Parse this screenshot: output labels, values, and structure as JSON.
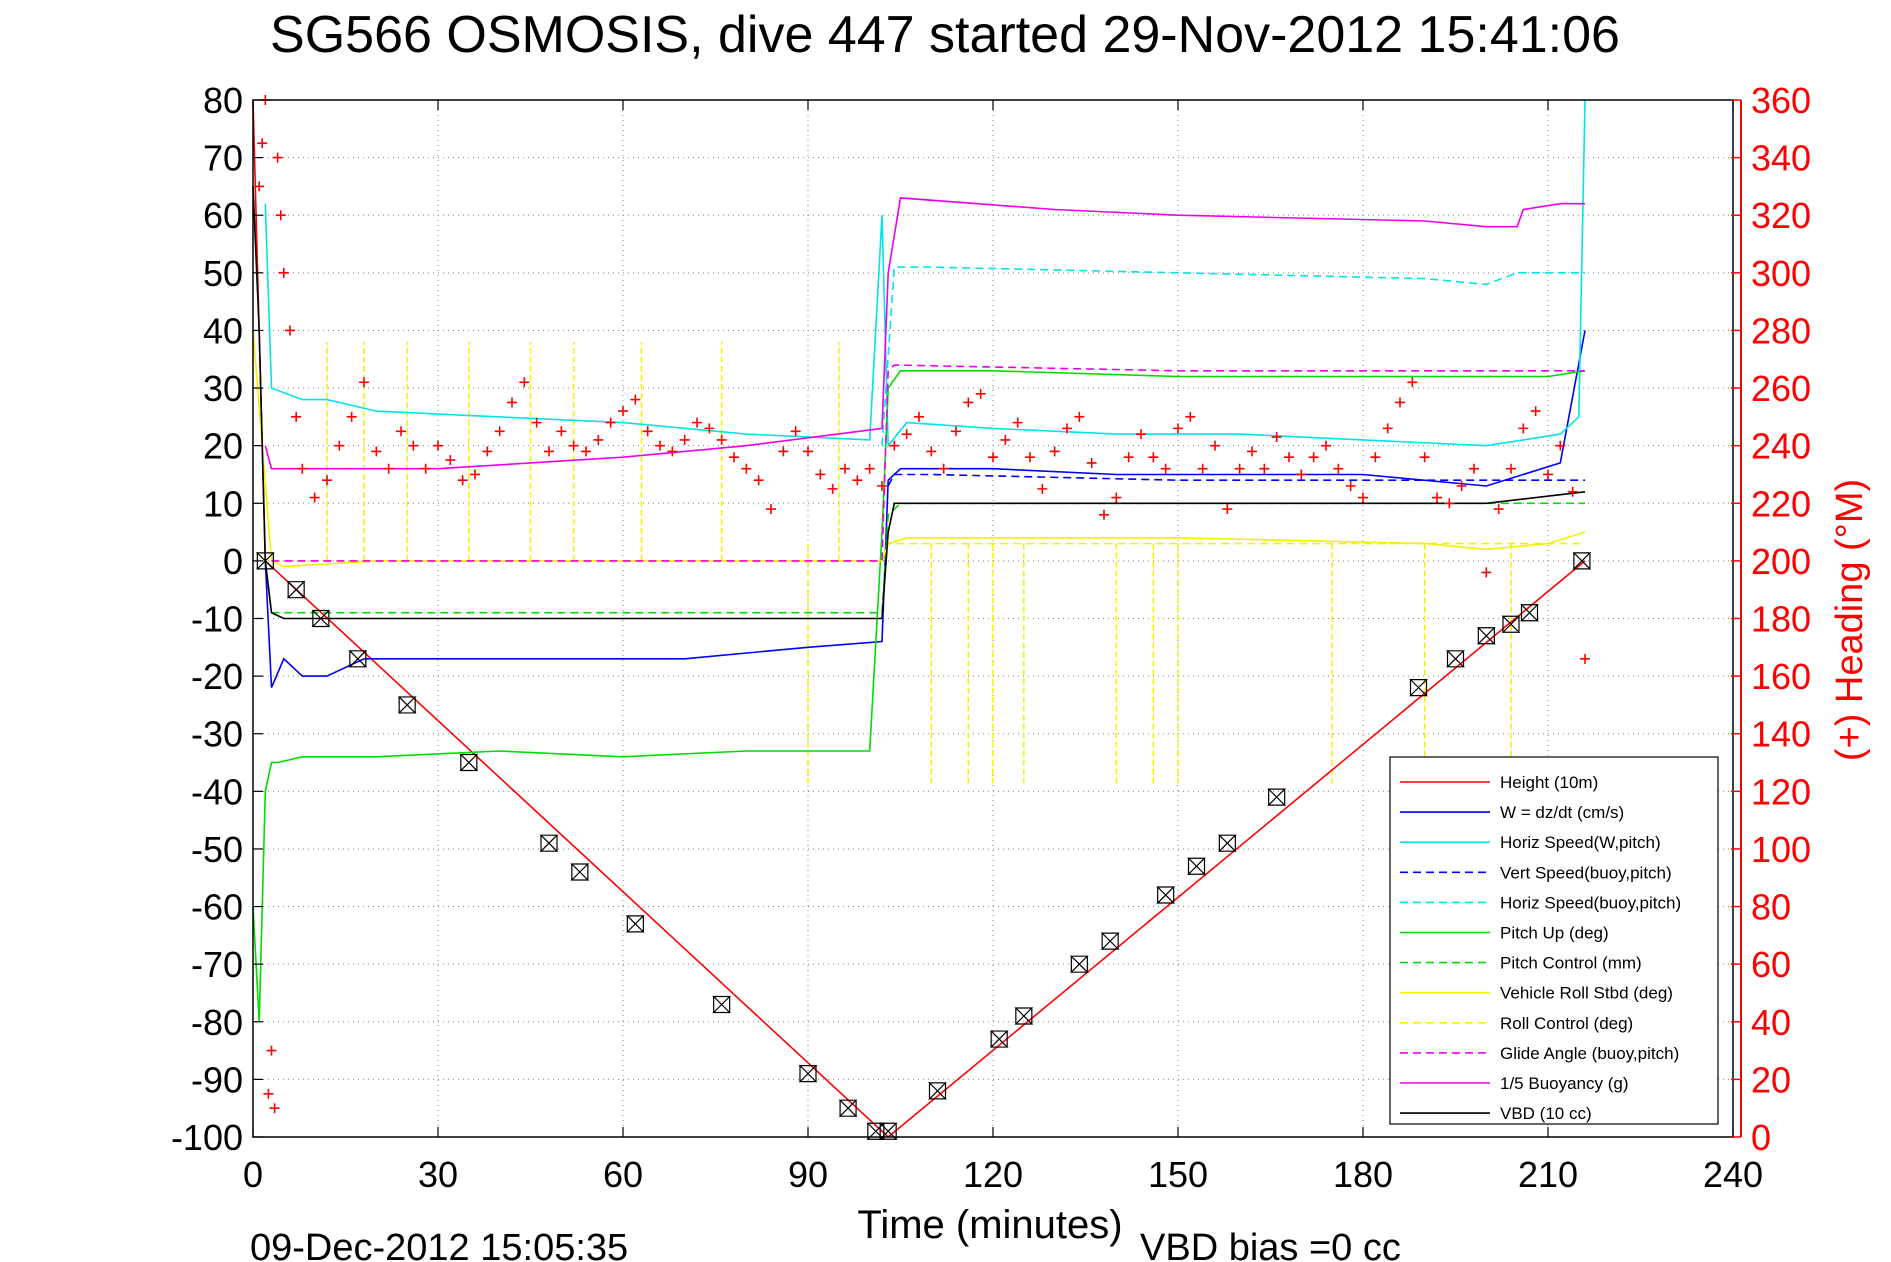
{
  "figure": {
    "title": "SG566 OSMOSIS, dive 447 started 29-Nov-2012 15:41:06",
    "footer_left": "09-Dec-2012 15:05:35",
    "footer_right": "VBD bias =0 cc"
  },
  "chart_data": {
    "type": "line",
    "title": "SG566 OSMOSIS, dive 447 started 29-Nov-2012 15:41:06",
    "xlabel": "Time (minutes)",
    "ylabel": "",
    "y2label": "(+) Heading (°M)",
    "xlim": [
      0,
      240
    ],
    "ylim": [
      -100,
      80
    ],
    "y2lim": [
      0,
      360
    ],
    "x_ticks": [
      0,
      30,
      60,
      90,
      120,
      150,
      180,
      210,
      240
    ],
    "y_ticks": [
      80,
      70,
      60,
      50,
      40,
      30,
      20,
      10,
      0,
      -10,
      -20,
      -30,
      -40,
      -50,
      -60,
      -70,
      -80,
      -90,
      -100
    ],
    "y2_ticks": [
      360,
      340,
      320,
      300,
      280,
      260,
      240,
      220,
      200,
      180,
      160,
      140,
      120,
      100,
      80,
      60,
      40,
      20,
      0
    ],
    "grid": true,
    "legend_position": "bottom-right",
    "colors": {
      "red": "#ff0000",
      "blue": "#0000ff",
      "cyan": "#00e5e5",
      "green": "#00dd00",
      "yellow": "#f2f200",
      "magenta": "#ee00ee",
      "black": "#000000"
    },
    "series": [
      {
        "name": "Height (10m)",
        "color": "#ff0000",
        "dash": false,
        "x": [
          0,
          2,
          103,
          216
        ],
        "y": [
          80,
          0,
          -100,
          0
        ]
      },
      {
        "name": "W = dz/dt (cm/s)",
        "color": "#0000ff",
        "dash": false,
        "x": [
          2,
          3,
          5,
          8,
          12,
          18,
          30,
          50,
          70,
          90,
          102,
          103,
          105,
          120,
          140,
          160,
          180,
          200,
          212,
          216
        ],
        "y": [
          0,
          -22,
          -17,
          -20,
          -20,
          -17,
          -17,
          -17,
          -17,
          -15,
          -14,
          14,
          16,
          16,
          15,
          15,
          15,
          13,
          17,
          40
        ]
      },
      {
        "name": "Horiz Speed(W,pitch)",
        "color": "#00e5e5",
        "dash": false,
        "x": [
          2,
          3,
          8,
          12,
          20,
          40,
          60,
          80,
          100,
          102,
          103,
          106,
          120,
          140,
          160,
          180,
          200,
          212,
          215,
          216
        ],
        "y": [
          62,
          30,
          28,
          28,
          26,
          25,
          24,
          22,
          21,
          60,
          20,
          24,
          23,
          22,
          22,
          21,
          20,
          22,
          25,
          80
        ]
      },
      {
        "name": "Vert Speed(buoy,pitch)",
        "color": "#0000ff",
        "dash": true,
        "x": [
          103,
          104,
          110,
          150,
          200,
          216
        ],
        "y": [
          13,
          15,
          15,
          14,
          14,
          14
        ]
      },
      {
        "name": "Horiz Speed(buoy,pitch)",
        "color": "#00e5e5",
        "dash": true,
        "x": [
          102,
          104,
          110,
          150,
          190,
          200,
          205,
          216
        ],
        "y": [
          20,
          51,
          51,
          50,
          49,
          48,
          50,
          50
        ]
      },
      {
        "name": "Pitch Up (deg)",
        "color": "#00dd00",
        "dash": false,
        "x": [
          0,
          1,
          2,
          3,
          4,
          8,
          20,
          40,
          60,
          80,
          100,
          102,
          103,
          105,
          120,
          150,
          190,
          210,
          216
        ],
        "y": [
          -60,
          -80,
          -40,
          -35,
          -35,
          -34,
          -34,
          -33,
          -34,
          -33,
          -33,
          5,
          30,
          33,
          33,
          32,
          32,
          32,
          33
        ]
      },
      {
        "name": "Pitch Control (mm)",
        "color": "#00dd00",
        "dash": true,
        "x": [
          2,
          3,
          20,
          60,
          102,
          103,
          105,
          150,
          200,
          216
        ],
        "y": [
          0,
          -9,
          -9,
          -9,
          -9,
          8,
          10,
          10,
          10,
          10
        ]
      },
      {
        "name": "Vehicle Roll Stbd (deg)",
        "color": "#f2f200",
        "dash": false,
        "x": [
          0,
          3,
          5,
          20,
          60,
          102,
          103,
          106,
          150,
          190,
          200,
          210,
          216
        ],
        "y": [
          40,
          0,
          -1,
          0,
          0,
          0,
          3,
          4,
          4,
          3,
          2,
          3,
          5
        ]
      },
      {
        "name": "Roll Control (deg)",
        "color": "#f2f200",
        "dash": true,
        "x": [
          3,
          5,
          60,
          102,
          103,
          106,
          150,
          200,
          216
        ],
        "y": [
          0,
          0,
          0,
          0,
          3,
          3,
          3,
          3,
          3
        ]
      },
      {
        "name": "Glide Angle (buoy,pitch)",
        "color": "#ee00ee",
        "dash": true,
        "x": [
          3,
          5,
          60,
          102,
          103,
          104,
          150,
          200,
          216
        ],
        "y": [
          0,
          0,
          0,
          0,
          33,
          34,
          33,
          33,
          33
        ]
      },
      {
        "name": "1/5 Buoyancy (g)",
        "color": "#ee00ee",
        "dash": false,
        "x": [
          2,
          3,
          30,
          60,
          80,
          102,
          103,
          105,
          130,
          150,
          190,
          200,
          205,
          206,
          212,
          216
        ],
        "y": [
          20,
          16,
          16,
          18,
          20,
          23,
          50,
          63,
          61,
          60,
          59,
          58,
          58,
          61,
          62,
          62
        ]
      },
      {
        "name": "VBD (10 cc)",
        "color": "#000000",
        "dash": false,
        "x": [
          0,
          1,
          2,
          3,
          5,
          60,
          102,
          103,
          104,
          150,
          200,
          216
        ],
        "y": [
          65,
          40,
          0,
          -9,
          -10,
          -10,
          -10,
          5,
          10,
          10,
          10,
          12
        ]
      }
    ],
    "heading_markers": {
      "description": "red + symbols plotted against right axis",
      "axis": "y2",
      "x": [
        1,
        1.5,
        2,
        2.5,
        3,
        3.5,
        4,
        4.5,
        5,
        6,
        7,
        8,
        10,
        12,
        14,
        16,
        18,
        20,
        22,
        24,
        26,
        28,
        30,
        32,
        34,
        36,
        38,
        40,
        42,
        44,
        46,
        48,
        50,
        52,
        54,
        56,
        58,
        60,
        62,
        64,
        66,
        68,
        70,
        72,
        74,
        76,
        78,
        80,
        82,
        84,
        86,
        88,
        90,
        92,
        94,
        96,
        98,
        100,
        102,
        104,
        106,
        108,
        110,
        112,
        114,
        116,
        118,
        120,
        122,
        124,
        126,
        128,
        130,
        132,
        134,
        136,
        138,
        140,
        142,
        144,
        146,
        148,
        150,
        152,
        154,
        156,
        158,
        160,
        162,
        164,
        166,
        168,
        170,
        172,
        174,
        176,
        178,
        180,
        182,
        184,
        186,
        188,
        190,
        192,
        194,
        196,
        198,
        200,
        202,
        204,
        206,
        208,
        210,
        212,
        214,
        216
      ],
      "y": [
        330,
        345,
        360,
        15,
        30,
        10,
        340,
        320,
        300,
        280,
        250,
        232,
        222,
        228,
        240,
        250,
        262,
        238,
        232,
        245,
        240,
        232,
        240,
        235,
        228,
        230,
        238,
        245,
        255,
        262,
        248,
        238,
        245,
        240,
        238,
        242,
        248,
        252,
        256,
        245,
        240,
        238,
        242,
        248,
        246,
        242,
        236,
        232,
        228,
        218,
        238,
        245,
        238,
        230,
        225,
        232,
        228,
        232,
        226,
        240,
        244,
        250,
        238,
        232,
        245,
        255,
        258,
        236,
        242,
        248,
        236,
        225,
        238,
        246,
        250,
        234,
        216,
        222,
        236,
        244,
        236,
        232,
        246,
        250,
        232,
        240,
        218,
        232,
        238,
        232,
        243,
        236,
        230,
        236,
        240,
        232,
        226,
        222,
        236,
        246,
        255,
        262,
        236,
        222,
        220,
        226,
        232,
        196,
        218,
        232,
        246,
        252,
        230,
        240,
        224,
        166
      ]
    },
    "depth_markers": {
      "description": "black hourglass/triangle symbols along the Height profile",
      "x": [
        2,
        7,
        11,
        17,
        25,
        35,
        48,
        53,
        62,
        76,
        90,
        96.5,
        101,
        103,
        111,
        121,
        125,
        134,
        139,
        148,
        153,
        158,
        166,
        189,
        195,
        200,
        204,
        207,
        215.5
      ],
      "y": [
        0,
        -5,
        -10,
        -17,
        -25,
        -35,
        -49,
        -54,
        -63,
        -77,
        -89,
        -95,
        -99,
        -99,
        -92,
        -83,
        -79,
        -70,
        -66,
        -58,
        -53,
        -49,
        -41,
        -22,
        -17,
        -13,
        -11,
        -9,
        0
      ]
    },
    "spikes": {
      "description": "vertical yellow dashed spikes (Roll Control)",
      "up_x": [
        12,
        18,
        25,
        35,
        45,
        52,
        63,
        76,
        95
      ],
      "down_x": [
        90,
        110,
        116,
        120,
        125,
        140,
        146,
        150,
        175,
        190,
        204
      ]
    }
  }
}
